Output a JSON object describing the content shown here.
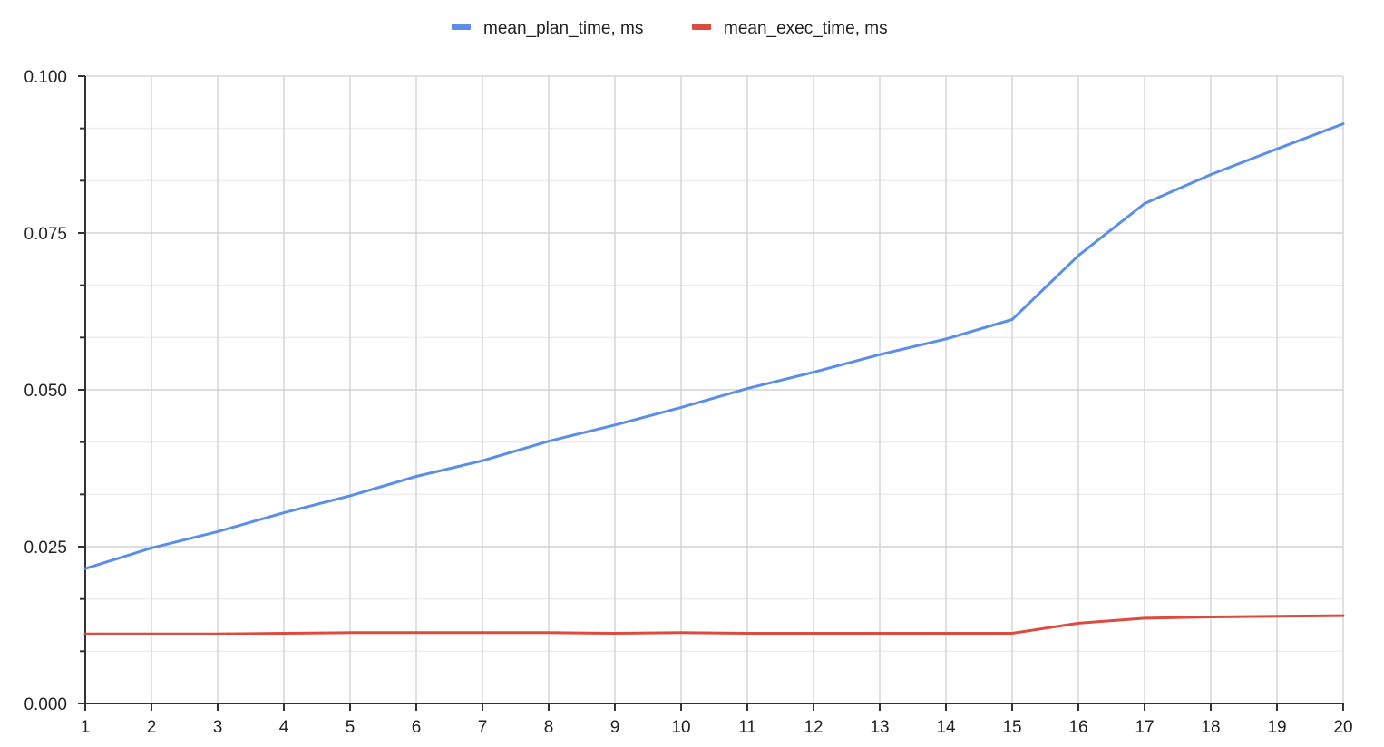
{
  "chart_data": {
    "type": "line",
    "title": "",
    "xlabel": "",
    "ylabel": "",
    "x": [
      1,
      2,
      3,
      4,
      5,
      6,
      7,
      8,
      9,
      10,
      11,
      12,
      13,
      14,
      15,
      16,
      17,
      18,
      19,
      20
    ],
    "xlim": [
      1,
      20
    ],
    "ylim": [
      0,
      0.1
    ],
    "x_ticks": [
      "1",
      "2",
      "3",
      "4",
      "5",
      "6",
      "7",
      "8",
      "9",
      "10",
      "11",
      "12",
      "13",
      "14",
      "15",
      "16",
      "17",
      "18",
      "19",
      "20"
    ],
    "y_ticks": [
      {
        "value": 0,
        "label": "0.000"
      },
      {
        "value": 0.025,
        "label": "0.025"
      },
      {
        "value": 0.05,
        "label": "0.050"
      },
      {
        "value": 0.075,
        "label": "0.075"
      },
      {
        "value": 0.1,
        "label": "0.100"
      }
    ],
    "y_minor_step": 0.0083333,
    "grid": true,
    "legend_position": "top-center",
    "series": [
      {
        "name": "mean_plan_time, ms",
        "color": "#5b8ee6",
        "values": [
          0.0215,
          0.0248,
          0.0274,
          0.0304,
          0.0331,
          0.0362,
          0.0387,
          0.0418,
          0.0444,
          0.0472,
          0.0502,
          0.0528,
          0.0556,
          0.0581,
          0.0612,
          0.0714,
          0.0797,
          0.0843,
          0.0884,
          0.0924
        ]
      },
      {
        "name": "mean_exec_time, ms",
        "color": "#dc4b3e",
        "values": [
          0.0111,
          0.0111,
          0.0111,
          0.0112,
          0.0113,
          0.0113,
          0.0113,
          0.0113,
          0.0112,
          0.0113,
          0.0112,
          0.0112,
          0.0112,
          0.0112,
          0.0112,
          0.0128,
          0.0136,
          0.0138,
          0.0139,
          0.014
        ]
      }
    ]
  }
}
